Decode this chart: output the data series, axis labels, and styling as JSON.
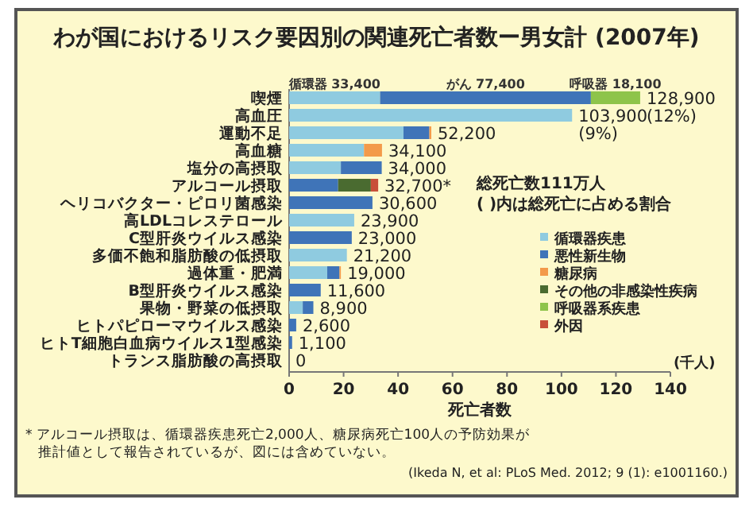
{
  "chart_data": {
    "type": "bar",
    "orientation": "horizontal",
    "stacked": true,
    "title": "わが国におけるリスク要因別の関連死亡者数ー男女計 (2007年)",
    "xlabel": "死亡者数",
    "categories": [
      "喫煙",
      "高血圧",
      "運動不足",
      "高血糖",
      "塩分の高摂取",
      "アルコール摂取",
      "ヘリコバクター・ピロリ菌感染",
      "高LDLコレステロール",
      "C型肝炎ウイルス感染",
      "多価不飽和脂肪酸の低摂取",
      "過体重・肥満",
      "B型肝炎ウイルス感染",
      "果物・野菜の低摂取",
      "ヒトパピローマウイルス感染",
      "ヒトT細胞白血病ウイルス1型感染",
      "トランス脂肪酸の高摂取"
    ],
    "series": [
      {
        "name": "循環器疾患",
        "color": "#8fcbe0",
        "values": [
          33.4,
          103.9,
          42,
          27.5,
          19,
          0,
          0,
          23.9,
          0,
          21.2,
          14,
          0,
          5,
          0,
          0,
          0
        ]
      },
      {
        "name": "悪性新生物",
        "color": "#3f74b8",
        "values": [
          77.4,
          0,
          9.5,
          0,
          15,
          18,
          30.6,
          0,
          23,
          0,
          4.5,
          11.6,
          3.9,
          2.6,
          1.1,
          0
        ]
      },
      {
        "name": "糖尿病",
        "color": "#f39a4a",
        "values": [
          0,
          0,
          0.7,
          6.6,
          0,
          0,
          0,
          0,
          0,
          0,
          0.5,
          0,
          0,
          0,
          0,
          0
        ]
      },
      {
        "name": "その他の非感染性疾病",
        "color": "#4a6b30",
        "values": [
          0,
          0,
          0,
          0,
          0,
          12,
          0,
          0,
          0,
          0,
          0,
          0,
          0,
          0,
          0,
          0
        ]
      },
      {
        "name": "呼吸器系疾患",
        "color": "#8ec44a",
        "values": [
          18.1,
          0,
          0,
          0,
          0,
          0,
          0,
          0,
          0,
          0,
          0,
          0,
          0,
          0,
          0,
          0
        ]
      },
      {
        "name": "外因",
        "color": "#c8503a",
        "values": [
          0,
          0,
          0,
          0,
          0,
          2.7,
          0,
          0,
          0,
          0,
          0,
          0,
          0,
          0,
          0,
          0
        ]
      }
    ],
    "totals": [
      "128,900",
      "103,900",
      "52,200",
      "34,100",
      "34,000",
      "32,700*",
      "30,600",
      "23,900",
      "23,000",
      "21,200",
      "19,000",
      "11,600",
      "8,900",
      "2,600",
      "1,100",
      "0"
    ],
    "xlim": [
      0,
      140
    ],
    "xticks": [
      0,
      20,
      40,
      60,
      80,
      100,
      120,
      140
    ],
    "grid": false,
    "legend": "right",
    "annotations": [
      {
        "text": "循環器 33,400",
        "x": 16.7,
        "y": "喫煙"
      },
      {
        "text": "がん 77,400",
        "x": 72.1,
        "y": "喫煙"
      },
      {
        "text": "呼吸器 18,100",
        "x": 119.85,
        "y": "喫煙"
      },
      {
        "text": "(12%)",
        "x": 128.9,
        "y": "喫煙"
      },
      {
        "text": "(9%)",
        "x": 103.9,
        "y": "高血圧"
      },
      "総死亡数111万人",
      "( )内は総死亡に占める割合",
      "(千人)",
      "* アルコール摂取は、循環器疾患死亡2,000人、糖尿病死亡100人の予防効果が",
      "推計値として報告されているが、図には含めていない。",
      "(Ikeda N, et al: PLoS Med. 2012; 9 (1): e1001160.)"
    ]
  }
}
